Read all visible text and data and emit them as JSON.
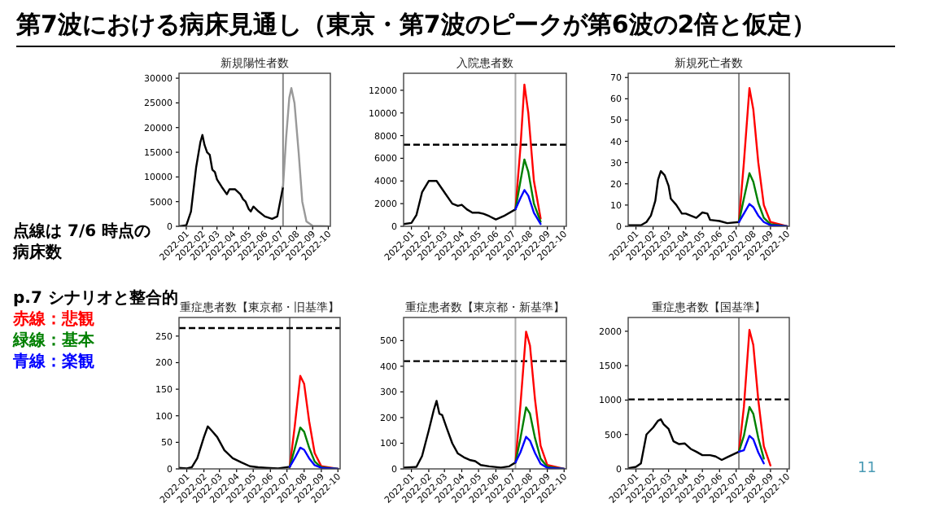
{
  "chart_data": [
    {
      "type": "other",
      "title": "第7波における病床見通し（東京・第7波のピークが第6波の2倍と仮定）",
      "annotations": [
        "点線は 7/6 時点の病床数",
        "p.7 シナリオと整合的",
        "赤線：悲観",
        "緑線：基本",
        "青線：楽観",
        "11"
      ],
      "colors": [
        "#000000",
        "#000000",
        "#ff0000",
        "#008000",
        "#0000ff",
        "#4a9bb5"
      ]
    },
    {
      "type": "line",
      "title": "新規陽性者数",
      "xlim": [
        "2021-12-18",
        "2022-10-05"
      ],
      "ylim": [
        0,
        31000
      ],
      "yticks": [
        0,
        5000,
        10000,
        15000,
        20000,
        25000,
        30000
      ],
      "xticks": [
        {
          "value": "2022-01-01",
          "label": "2022-01"
        },
        {
          "value": "2022-02-01",
          "label": "2022-02"
        },
        {
          "value": "2022-03-01",
          "label": "2022-03"
        },
        {
          "value": "2022-04-01",
          "label": "2022-04"
        },
        {
          "value": "2022-05-01",
          "label": "2022-05"
        },
        {
          "value": "2022-06-01",
          "label": "2022-06"
        },
        {
          "value": "2022-07-01",
          "label": "2022-07"
        },
        {
          "value": "2022-08-01",
          "label": "2022-08"
        },
        {
          "value": "2022-09-01",
          "label": "2022-09"
        },
        {
          "value": "2022-10-01",
          "label": "2022-10"
        }
      ],
      "ref_lines": [
        {
          "axis": "x",
          "value": "2022-07-06",
          "color": "#888888"
        }
      ],
      "series": [
        {
          "color": "#000000",
          "x": [
            "2021-12-18",
            "2022-01-01",
            "2022-01-10",
            "2022-01-20",
            "2022-01-28",
            "2022-02-01",
            "2022-02-05",
            "2022-02-10",
            "2022-02-15",
            "2022-02-20",
            "2022-02-25",
            "2022-03-01",
            "2022-03-10",
            "2022-03-20",
            "2022-03-25",
            "2022-04-05",
            "2022-04-15",
            "2022-04-20",
            "2022-04-25",
            "2022-05-01",
            "2022-05-05",
            "2022-05-10",
            "2022-05-20",
            "2022-06-01",
            "2022-06-15",
            "2022-06-25",
            "2022-07-06"
          ],
          "values": [
            0,
            200,
            3000,
            12000,
            17000,
            18500,
            16500,
            15000,
            14500,
            11500,
            11000,
            9500,
            8000,
            6500,
            7500,
            7500,
            6500,
            5500,
            5000,
            3500,
            3000,
            4000,
            3000,
            2000,
            1500,
            2000,
            8000
          ]
        },
        {
          "color": "#999999",
          "x": [
            "2022-07-06",
            "2022-07-12",
            "2022-07-18",
            "2022-07-22",
            "2022-07-28",
            "2022-08-05",
            "2022-08-12",
            "2022-08-20",
            "2022-09-01",
            "2022-10-01"
          ],
          "values": [
            8000,
            18000,
            26000,
            28000,
            25000,
            15000,
            5000,
            1000,
            100,
            0
          ]
        }
      ]
    },
    {
      "type": "line",
      "title": "入院患者数",
      "xlim": [
        "2021-12-18",
        "2022-10-05"
      ],
      "ylim": [
        0,
        13500
      ],
      "yticks": [
        0,
        2000,
        4000,
        6000,
        8000,
        10000,
        12000
      ],
      "xticks": [
        {
          "value": "2022-01-01",
          "label": "2022-01"
        },
        {
          "value": "2022-02-01",
          "label": "2022-02"
        },
        {
          "value": "2022-03-01",
          "label": "2022-03"
        },
        {
          "value": "2022-04-01",
          "label": "2022-04"
        },
        {
          "value": "2022-05-01",
          "label": "2022-05"
        },
        {
          "value": "2022-06-01",
          "label": "2022-06"
        },
        {
          "value": "2022-07-01",
          "label": "2022-07"
        },
        {
          "value": "2022-08-01",
          "label": "2022-08"
        },
        {
          "value": "2022-09-01",
          "label": "2022-09"
        },
        {
          "value": "2022-10-01",
          "label": "2022-10"
        }
      ],
      "ref_lines": [
        {
          "axis": "x",
          "value": "2022-07-06",
          "color": "#aaaaaa"
        },
        {
          "axis": "y",
          "value": 7200,
          "color": "#000000",
          "line_style": "dashed"
        }
      ],
      "series": [
        {
          "color": "#000000",
          "x": [
            "2021-12-18",
            "2022-01-01",
            "2022-01-10",
            "2022-01-20",
            "2022-02-01",
            "2022-02-15",
            "2022-03-01",
            "2022-03-15",
            "2022-03-25",
            "2022-04-01",
            "2022-04-10",
            "2022-04-20",
            "2022-05-01",
            "2022-05-10",
            "2022-05-20",
            "2022-06-01",
            "2022-06-15",
            "2022-07-06"
          ],
          "values": [
            200,
            300,
            1000,
            3000,
            4000,
            4000,
            3000,
            2000,
            1800,
            1900,
            1500,
            1200,
            1200,
            1100,
            900,
            600,
            900,
            1500
          ]
        },
        {
          "color": "#ff0000",
          "x": [
            "2022-07-06",
            "2022-07-15",
            "2022-07-22",
            "2022-07-29",
            "2022-08-08",
            "2022-08-20"
          ],
          "values": [
            1500,
            7000,
            12500,
            10000,
            4000,
            700
          ]
        },
        {
          "color": "#008000",
          "x": [
            "2022-07-06",
            "2022-07-15",
            "2022-07-22",
            "2022-07-29",
            "2022-08-08",
            "2022-08-20"
          ],
          "values": [
            1500,
            4000,
            5900,
            4800,
            2000,
            400
          ]
        },
        {
          "color": "#0000ff",
          "x": [
            "2022-07-06",
            "2022-07-15",
            "2022-07-22",
            "2022-07-29",
            "2022-08-08",
            "2022-08-20"
          ],
          "values": [
            1500,
            2500,
            3200,
            2700,
            1200,
            200
          ]
        }
      ]
    },
    {
      "type": "line",
      "title": "新規死亡者数",
      "xlim": [
        "2021-12-18",
        "2022-10-05"
      ],
      "ylim": [
        0,
        72
      ],
      "yticks": [
        0,
        10,
        20,
        30,
        40,
        50,
        60,
        70
      ],
      "xticks": [
        {
          "value": "2022-01-01",
          "label": "2022-01"
        },
        {
          "value": "2022-02-01",
          "label": "2022-02"
        },
        {
          "value": "2022-03-01",
          "label": "2022-03"
        },
        {
          "value": "2022-04-01",
          "label": "2022-04"
        },
        {
          "value": "2022-05-01",
          "label": "2022-05"
        },
        {
          "value": "2022-06-01",
          "label": "2022-06"
        },
        {
          "value": "2022-07-01",
          "label": "2022-07"
        },
        {
          "value": "2022-08-01",
          "label": "2022-08"
        },
        {
          "value": "2022-09-01",
          "label": "2022-09"
        },
        {
          "value": "2022-10-01",
          "label": "2022-10"
        }
      ],
      "ref_lines": [
        {
          "axis": "x",
          "value": "2022-07-06",
          "color": "#888888"
        }
      ],
      "series": [
        {
          "color": "#000000",
          "x": [
            "2021-12-18",
            "2022-01-10",
            "2022-01-20",
            "2022-01-28",
            "2022-02-05",
            "2022-02-10",
            "2022-02-15",
            "2022-02-22",
            "2022-03-01",
            "2022-03-05",
            "2022-03-15",
            "2022-03-25",
            "2022-04-01",
            "2022-04-10",
            "2022-04-20",
            "2022-05-01",
            "2022-05-10",
            "2022-05-15",
            "2022-06-01",
            "2022-06-15",
            "2022-07-06"
          ],
          "values": [
            0.5,
            0.5,
            2,
            5,
            12,
            22,
            26,
            24,
            19,
            13,
            10,
            6,
            6,
            5,
            4,
            6.5,
            6,
            3,
            2.5,
            1.5,
            2
          ]
        },
        {
          "color": "#ff0000",
          "x": [
            "2022-07-06",
            "2022-07-15",
            "2022-07-25",
            "2022-08-01",
            "2022-08-10",
            "2022-08-20",
            "2022-09-01",
            "2022-10-01"
          ],
          "values": [
            2,
            30,
            65,
            55,
            30,
            10,
            2,
            0
          ]
        },
        {
          "color": "#008000",
          "x": [
            "2022-07-06",
            "2022-07-15",
            "2022-07-25",
            "2022-08-01",
            "2022-08-10",
            "2022-08-20",
            "2022-09-01",
            "2022-10-01"
          ],
          "values": [
            2,
            13,
            25,
            21,
            11,
            4,
            1,
            0
          ]
        },
        {
          "color": "#0000ff",
          "x": [
            "2022-07-06",
            "2022-07-15",
            "2022-07-25",
            "2022-08-01",
            "2022-08-10",
            "2022-08-20",
            "2022-09-01",
            "2022-10-01"
          ],
          "values": [
            2,
            6,
            10.5,
            9,
            5,
            2,
            0.5,
            0
          ]
        }
      ]
    },
    {
      "type": "line",
      "title": "重症患者数【東京都・旧基準】",
      "xlim": [
        "2021-12-18",
        "2022-10-05"
      ],
      "ylim": [
        0,
        285
      ],
      "yticks": [
        0,
        50,
        100,
        150,
        200,
        250
      ],
      "xticks": [
        {
          "value": "2022-01-01",
          "label": "2022-01"
        },
        {
          "value": "2022-02-01",
          "label": "2022-02"
        },
        {
          "value": "2022-03-01",
          "label": "2022-03"
        },
        {
          "value": "2022-04-01",
          "label": "2022-04"
        },
        {
          "value": "2022-05-01",
          "label": "2022-05"
        },
        {
          "value": "2022-06-01",
          "label": "2022-06"
        },
        {
          "value": "2022-07-01",
          "label": "2022-07"
        },
        {
          "value": "2022-08-01",
          "label": "2022-08"
        },
        {
          "value": "2022-09-01",
          "label": "2022-09"
        },
        {
          "value": "2022-10-01",
          "label": "2022-10"
        }
      ],
      "ref_lines": [
        {
          "axis": "x",
          "value": "2022-07-06",
          "color": "#888888"
        },
        {
          "axis": "y",
          "value": 265,
          "color": "#000000",
          "line_style": "dashed"
        }
      ],
      "series": [
        {
          "color": "#000000",
          "x": [
            "2021-12-18",
            "2022-01-01",
            "2022-01-10",
            "2022-01-20",
            "2022-02-01",
            "2022-02-08",
            "2022-02-15",
            "2022-02-25",
            "2022-03-10",
            "2022-03-25",
            "2022-04-10",
            "2022-04-25",
            "2022-05-10",
            "2022-05-25",
            "2022-06-15",
            "2022-07-06"
          ],
          "values": [
            2,
            1,
            3,
            20,
            60,
            80,
            72,
            60,
            35,
            20,
            12,
            5,
            3,
            2,
            1,
            4
          ]
        },
        {
          "color": "#ff0000",
          "x": [
            "2022-07-06",
            "2022-07-15",
            "2022-07-25",
            "2022-08-01",
            "2022-08-10",
            "2022-08-20",
            "2022-09-01",
            "2022-10-01"
          ],
          "values": [
            4,
            80,
            175,
            160,
            90,
            30,
            5,
            0
          ]
        },
        {
          "color": "#008000",
          "x": [
            "2022-07-06",
            "2022-07-15",
            "2022-07-25",
            "2022-08-01",
            "2022-08-10",
            "2022-08-20",
            "2022-09-01",
            "2022-10-01"
          ],
          "values": [
            4,
            38,
            78,
            70,
            40,
            14,
            3,
            0
          ]
        },
        {
          "color": "#0000ff",
          "x": [
            "2022-07-06",
            "2022-07-15",
            "2022-07-25",
            "2022-08-01",
            "2022-08-10",
            "2022-08-20",
            "2022-09-01",
            "2022-10-01"
          ],
          "values": [
            4,
            20,
            40,
            36,
            20,
            7,
            2,
            0
          ]
        }
      ]
    },
    {
      "type": "line",
      "title": "重症患者数【東京都・新基準】",
      "xlim": [
        "2021-12-18",
        "2022-10-05"
      ],
      "ylim": [
        0,
        590
      ],
      "yticks": [
        0,
        100,
        200,
        300,
        400,
        500
      ],
      "xticks": [
        {
          "value": "2022-01-01",
          "label": "2022-01"
        },
        {
          "value": "2022-02-01",
          "label": "2022-02"
        },
        {
          "value": "2022-03-01",
          "label": "2022-03"
        },
        {
          "value": "2022-04-01",
          "label": "2022-04"
        },
        {
          "value": "2022-05-01",
          "label": "2022-05"
        },
        {
          "value": "2022-06-01",
          "label": "2022-06"
        },
        {
          "value": "2022-07-01",
          "label": "2022-07"
        },
        {
          "value": "2022-08-01",
          "label": "2022-08"
        },
        {
          "value": "2022-09-01",
          "label": "2022-09"
        },
        {
          "value": "2022-10-01",
          "label": "2022-10"
        }
      ],
      "ref_lines": [
        {
          "axis": "x",
          "value": "2022-07-06",
          "color": "#aaaaaa"
        },
        {
          "axis": "y",
          "value": 420,
          "color": "#000000",
          "line_style": "dashed"
        }
      ],
      "series": [
        {
          "color": "#000000",
          "x": [
            "2021-12-18",
            "2022-01-10",
            "2022-01-20",
            "2022-02-01",
            "2022-02-10",
            "2022-02-15",
            "2022-02-20",
            "2022-02-25",
            "2022-03-05",
            "2022-03-15",
            "2022-03-25",
            "2022-04-05",
            "2022-04-15",
            "2022-04-25",
            "2022-05-05",
            "2022-05-20",
            "2022-06-10",
            "2022-06-25",
            "2022-07-06"
          ],
          "values": [
            5,
            8,
            50,
            150,
            230,
            265,
            215,
            210,
            160,
            100,
            60,
            45,
            35,
            30,
            15,
            10,
            5,
            10,
            25
          ]
        },
        {
          "color": "#ff0000",
          "x": [
            "2022-07-06",
            "2022-07-15",
            "2022-07-25",
            "2022-08-01",
            "2022-08-10",
            "2022-08-20",
            "2022-09-01",
            "2022-10-01"
          ],
          "values": [
            25,
            250,
            535,
            480,
            270,
            90,
            15,
            0
          ]
        },
        {
          "color": "#008000",
          "x": [
            "2022-07-06",
            "2022-07-15",
            "2022-07-25",
            "2022-08-01",
            "2022-08-10",
            "2022-08-20",
            "2022-09-01",
            "2022-10-01"
          ],
          "values": [
            25,
            120,
            240,
            215,
            120,
            40,
            8,
            0
          ]
        },
        {
          "color": "#0000ff",
          "x": [
            "2022-07-06",
            "2022-07-15",
            "2022-07-25",
            "2022-08-01",
            "2022-08-10",
            "2022-08-20",
            "2022-09-01",
            "2022-10-01"
          ],
          "values": [
            25,
            65,
            125,
            110,
            62,
            20,
            4,
            0
          ]
        }
      ]
    },
    {
      "type": "line",
      "title": "重症患者数【国基準】",
      "xlim": [
        "2021-12-18",
        "2022-10-05"
      ],
      "ylim": [
        0,
        2200
      ],
      "yticks": [
        0,
        500,
        1000,
        1500,
        2000
      ],
      "xticks": [
        {
          "value": "2022-01-01",
          "label": "2022-01"
        },
        {
          "value": "2022-02-01",
          "label": "2022-02"
        },
        {
          "value": "2022-03-01",
          "label": "2022-03"
        },
        {
          "value": "2022-04-01",
          "label": "2022-04"
        },
        {
          "value": "2022-05-01",
          "label": "2022-05"
        },
        {
          "value": "2022-06-01",
          "label": "2022-06"
        },
        {
          "value": "2022-07-01",
          "label": "2022-07"
        },
        {
          "value": "2022-08-01",
          "label": "2022-08"
        },
        {
          "value": "2022-09-01",
          "label": "2022-09"
        },
        {
          "value": "2022-10-01",
          "label": "2022-10"
        }
      ],
      "ref_lines": [
        {
          "axis": "x",
          "value": "2022-07-06",
          "color": "#888888"
        },
        {
          "axis": "y",
          "value": 1010,
          "color": "#000000",
          "line_style": "dashed"
        }
      ],
      "series": [
        {
          "color": "#000000",
          "x": [
            "2021-12-18",
            "2022-01-01",
            "2022-01-10",
            "2022-01-20",
            "2022-02-01",
            "2022-02-10",
            "2022-02-15",
            "2022-02-20",
            "2022-03-01",
            "2022-03-10",
            "2022-03-20",
            "2022-03-30",
            "2022-04-10",
            "2022-04-20",
            "2022-05-01",
            "2022-05-15",
            "2022-05-25",
            "2022-06-05",
            "2022-06-15",
            "2022-07-06"
          ],
          "values": [
            10,
            30,
            80,
            500,
            600,
            700,
            720,
            650,
            580,
            400,
            360,
            370,
            290,
            250,
            200,
            200,
            180,
            130,
            170,
            250
          ]
        },
        {
          "color": "#ff0000",
          "x": [
            "2022-07-06",
            "2022-07-15",
            "2022-07-25",
            "2022-08-01",
            "2022-08-10",
            "2022-08-20",
            "2022-09-01"
          ],
          "values": [
            250,
            900,
            2020,
            1800,
            1000,
            330,
            50
          ]
        },
        {
          "color": "#008000",
          "x": [
            "2022-07-06",
            "2022-07-15",
            "2022-07-25",
            "2022-08-01",
            "2022-08-10",
            "2022-08-20"
          ],
          "values": [
            250,
            480,
            900,
            800,
            450,
            150
          ]
        },
        {
          "color": "#0000ff",
          "x": [
            "2022-07-06",
            "2022-07-15",
            "2022-07-25",
            "2022-08-01",
            "2022-08-10",
            "2022-08-20"
          ],
          "values": [
            250,
            270,
            480,
            430,
            240,
            80
          ]
        }
      ]
    }
  ]
}
